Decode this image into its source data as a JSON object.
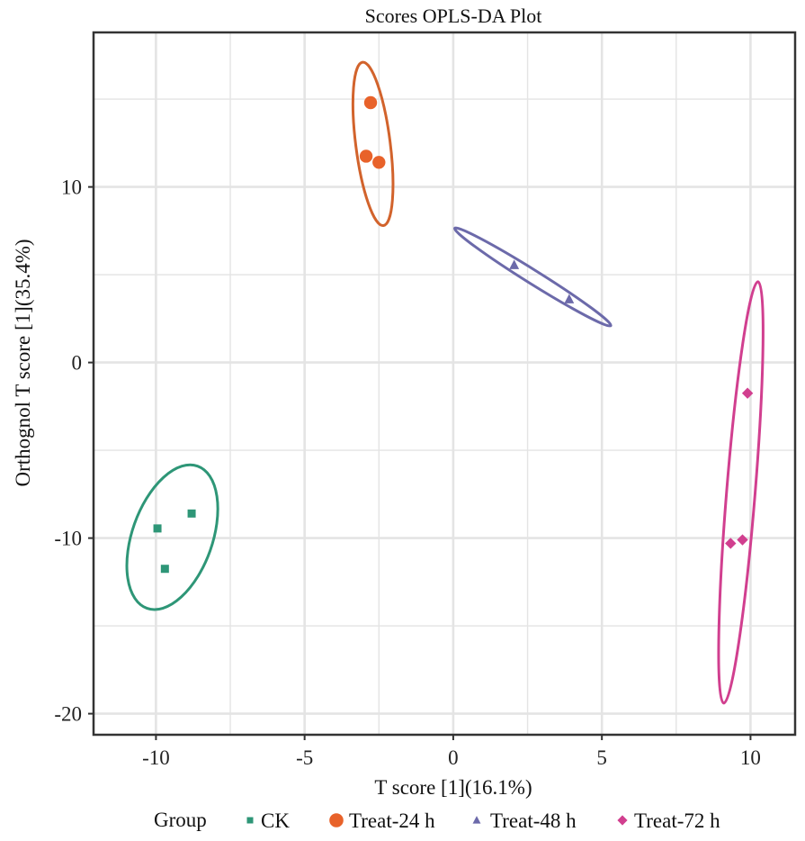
{
  "chart_data": {
    "type": "scatter",
    "title": "Scores OPLS-DA Plot",
    "xlabel": "T score [1](16.1%)",
    "ylabel": "Orthognol T score [1](35.4%)",
    "xlim": [
      -12.1,
      11.5
    ],
    "ylim": [
      -21.2,
      18.8
    ],
    "xticks": [
      -10,
      -5,
      0,
      5,
      10
    ],
    "xtick_labels": [
      "-10",
      "-5",
      "0",
      "5",
      "10"
    ],
    "yticks": [
      -20,
      -10,
      0,
      10
    ],
    "ytick_labels": [
      "-20",
      "-10",
      "0",
      "10"
    ],
    "grid": true,
    "legend": {
      "title": "Group",
      "placement": "bottom"
    },
    "series": [
      {
        "name": "CK",
        "color": "#2e9677",
        "marker": "square",
        "points": [
          [
            -8.8,
            -8.6
          ],
          [
            -9.95,
            -9.45
          ],
          [
            -9.7,
            -11.75
          ]
        ],
        "ellipse": {
          "center": [
            -9.45,
            -9.95
          ],
          "major_end_a": [
            -8.6,
            -5.9
          ],
          "major_end_b": [
            -10.3,
            -14.0
          ],
          "minor_half": 1.35
        }
      },
      {
        "name": "Treat-24 h",
        "color": "#e8622a",
        "ellipse_color": "#d2632c",
        "marker": "circle",
        "points": [
          [
            -2.78,
            14.8
          ],
          [
            -2.93,
            11.75
          ],
          [
            -2.5,
            11.4
          ]
        ],
        "ellipse": {
          "center": [
            -2.7,
            12.45
          ],
          "major_end_a": [
            -3.05,
            17.1
          ],
          "major_end_b": [
            -2.35,
            7.8
          ],
          "minor_half": 0.58
        }
      },
      {
        "name": "Treat-48 h",
        "color": "#6c6aaa",
        "marker": "triangle",
        "points": [
          [
            2.05,
            5.55
          ],
          [
            3.9,
            3.6
          ]
        ],
        "ellipse": {
          "center": [
            2.65,
            4.9
          ],
          "major_end_a": [
            0.05,
            7.65
          ],
          "major_end_b": [
            5.3,
            2.1
          ],
          "minor_half": 0.23
        }
      },
      {
        "name": "Treat-72 h",
        "color": "#d13f8f",
        "marker": "diamond",
        "points": [
          [
            9.9,
            -1.75
          ],
          [
            9.33,
            -10.3
          ],
          [
            9.73,
            -10.1
          ]
        ],
        "ellipse": {
          "center": [
            9.7,
            -7.4
          ],
          "major_end_a": [
            10.25,
            4.6
          ],
          "major_end_b": [
            9.1,
            -19.4
          ],
          "minor_half": 0.48
        }
      }
    ]
  }
}
